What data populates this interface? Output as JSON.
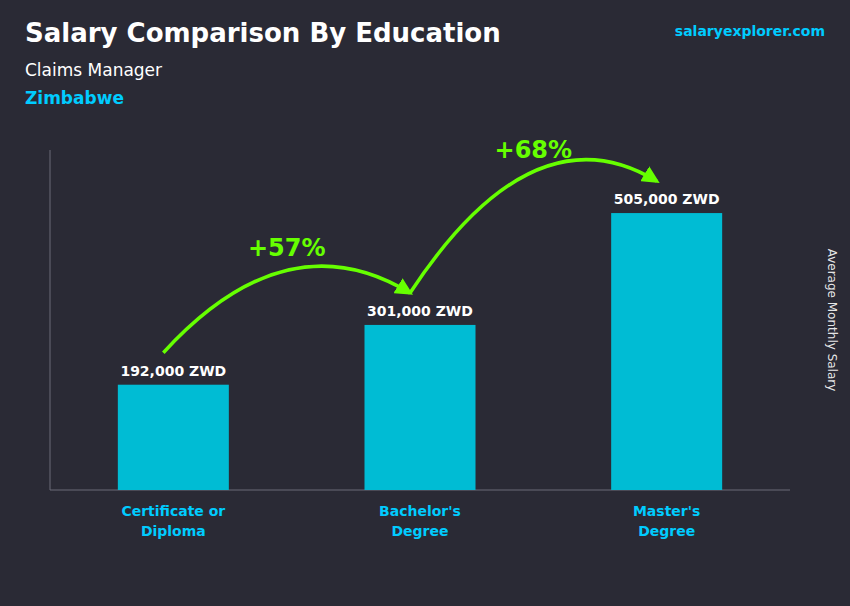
{
  "chart_data": {
    "type": "bar",
    "title": "Salary Comparison By Education",
    "subtitle": [
      "Claims Manager",
      "Zimbabwe"
    ],
    "y_label": "Average Monthly Salary",
    "source": "salaryexplorer.com",
    "categories": [
      "Certificate or\nDiploma",
      "Bachelor's\nDegree",
      "Master's\nDegree"
    ],
    "values": [
      192000,
      301000,
      505000
    ],
    "value_labels": [
      "192,000 ZWD",
      "301,000 ZWD",
      "505,000 ZWD"
    ],
    "data_labels": true,
    "color": "#00bcd4",
    "ylim": [
      0,
      620000
    ],
    "tick_labels": "x",
    "grid": false,
    "annotations": [
      {
        "text": "+57%",
        "color": "#66ff00"
      },
      {
        "text": "+68%",
        "color": "#66ff00"
      }
    ]
  }
}
